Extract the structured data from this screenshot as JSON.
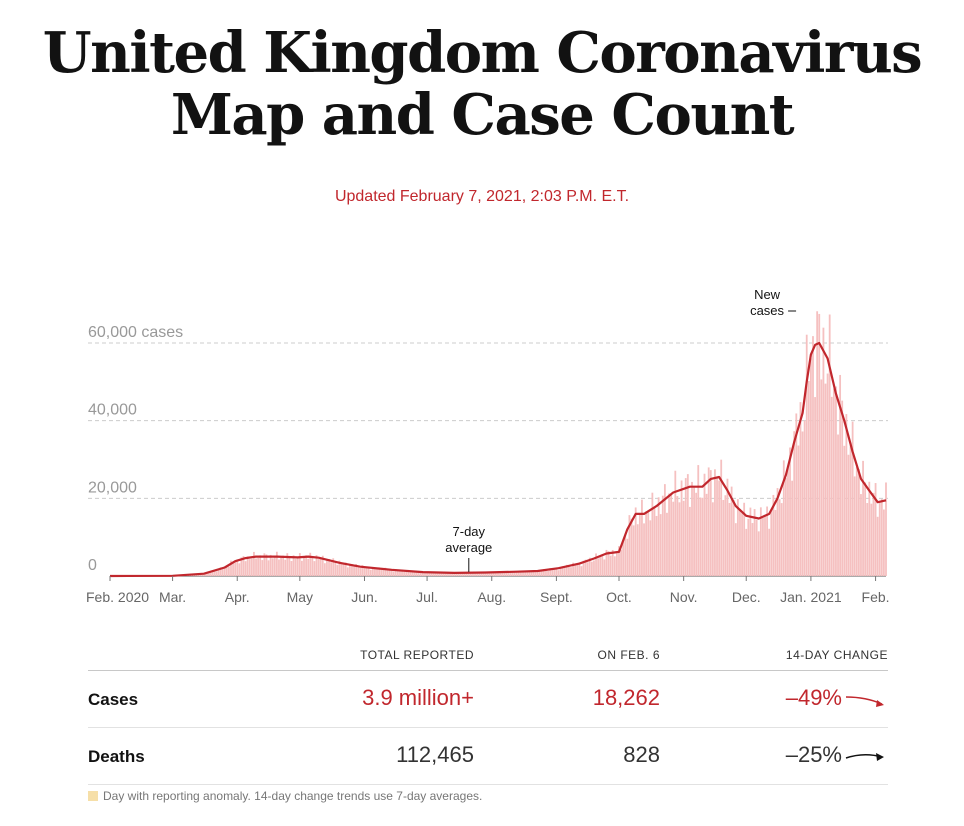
{
  "header": {
    "title_line1": "United Kingdom Coronavirus",
    "title_line2": "Map and Case Count",
    "updated": "Updated February 7, 2021, 2:03 P.M. E.T."
  },
  "colors": {
    "accent_red": "#c1272d",
    "bar_pink": "#f5c0c0",
    "grid": "#cccccc",
    "anomaly": "#f6dfa8"
  },
  "chart_data": {
    "type": "bar",
    "title": "New cases",
    "ylabel": "cases",
    "ylim": [
      0,
      60000
    ],
    "y_ticks": [
      {
        "value": 0,
        "label": "0"
      },
      {
        "value": 20000,
        "label": "20,000"
      },
      {
        "value": 40000,
        "label": "40,000"
      },
      {
        "value": 60000,
        "label": "60,000 cases"
      }
    ],
    "x_labels": [
      "Feb. 2020",
      "Mar.",
      "Apr.",
      "May",
      "Jun.",
      "Jul.",
      "Aug.",
      "Sept.",
      "Oct.",
      "Nov.",
      "Dec.",
      "Jan. 2021",
      "Feb."
    ],
    "x_range_days": [
      0,
      372
    ],
    "x_label_days": [
      0,
      30,
      61,
      91,
      122,
      152,
      183,
      214,
      244,
      275,
      305,
      336,
      367
    ],
    "annotations": [
      {
        "text_line1": "New",
        "text_line2": "cases",
        "day": 338,
        "value": 60000
      },
      {
        "text_line1": "7-day",
        "text_line2": "average",
        "day": 172,
        "value": 800
      }
    ],
    "series": [
      {
        "name": "7-day average",
        "days": [
          0,
          30,
          45,
          55,
          60,
          65,
          70,
          80,
          90,
          95,
          100,
          110,
          120,
          135,
          150,
          165,
          180,
          195,
          205,
          215,
          225,
          232,
          238,
          244,
          248,
          252,
          256,
          262,
          270,
          278,
          284,
          288,
          292,
          296,
          300,
          305,
          311,
          316,
          320,
          324,
          328,
          332,
          334,
          336,
          338,
          340,
          344,
          348,
          352,
          356,
          360,
          364,
          368,
          372
        ],
        "values": [
          0,
          50,
          600,
          2200,
          3800,
          4600,
          5000,
          5000,
          4800,
          5000,
          4700,
          3400,
          2400,
          1600,
          1000,
          800,
          900,
          1100,
          1300,
          2000,
          3200,
          4500,
          5800,
          6200,
          12000,
          16000,
          16000,
          18000,
          21500,
          23000,
          23000,
          25000,
          25500,
          22000,
          18000,
          15500,
          14800,
          16000,
          20000,
          26000,
          34500,
          42000,
          50000,
          57000,
          59500,
          60000,
          56000,
          47000,
          40000,
          32000,
          25000,
          22000,
          19000,
          19500
        ]
      },
      {
        "name": "Daily new cases",
        "days": [
          0,
          30,
          45,
          55,
          60,
          65,
          70,
          80,
          90,
          95,
          100,
          110,
          120,
          135,
          150,
          165,
          180,
          195,
          205,
          215,
          225,
          232,
          238,
          244,
          248,
          252,
          256,
          262,
          270,
          278,
          284,
          288,
          292,
          296,
          300,
          305,
          311,
          316,
          320,
          324,
          328,
          332,
          334,
          336,
          338,
          340,
          344,
          348,
          352,
          356,
          360,
          364,
          368,
          372
        ],
        "values": [
          0,
          50,
          600,
          2200,
          3800,
          4600,
          5000,
          5000,
          4800,
          5000,
          4700,
          3400,
          2400,
          1600,
          1000,
          800,
          900,
          1100,
          1300,
          2000,
          3200,
          4500,
          5800,
          6200,
          12000,
          16000,
          16000,
          18000,
          21500,
          23000,
          23000,
          25000,
          25500,
          22000,
          18000,
          15500,
          14800,
          16000,
          20000,
          26000,
          34500,
          42000,
          50000,
          57000,
          59500,
          60000,
          56000,
          47000,
          40000,
          32000,
          25000,
          22000,
          19000,
          19500
        ]
      }
    ]
  },
  "stats": {
    "headers": {
      "total": "TOTAL REPORTED",
      "on_date": "ON FEB. 6",
      "change": "14-DAY CHANGE"
    },
    "rows": [
      {
        "label": "Cases",
        "total": "3.9 million+",
        "on_date": "18,262",
        "change": "–49%",
        "trend_icon": "down-arrow-icon"
      },
      {
        "label": "Deaths",
        "total": "112,465",
        "on_date": "828",
        "change": "–25%",
        "trend_icon": "flat-arrow-icon"
      }
    ]
  },
  "footnote": "Day with reporting anomaly. 14-day change trends use 7-day averages."
}
